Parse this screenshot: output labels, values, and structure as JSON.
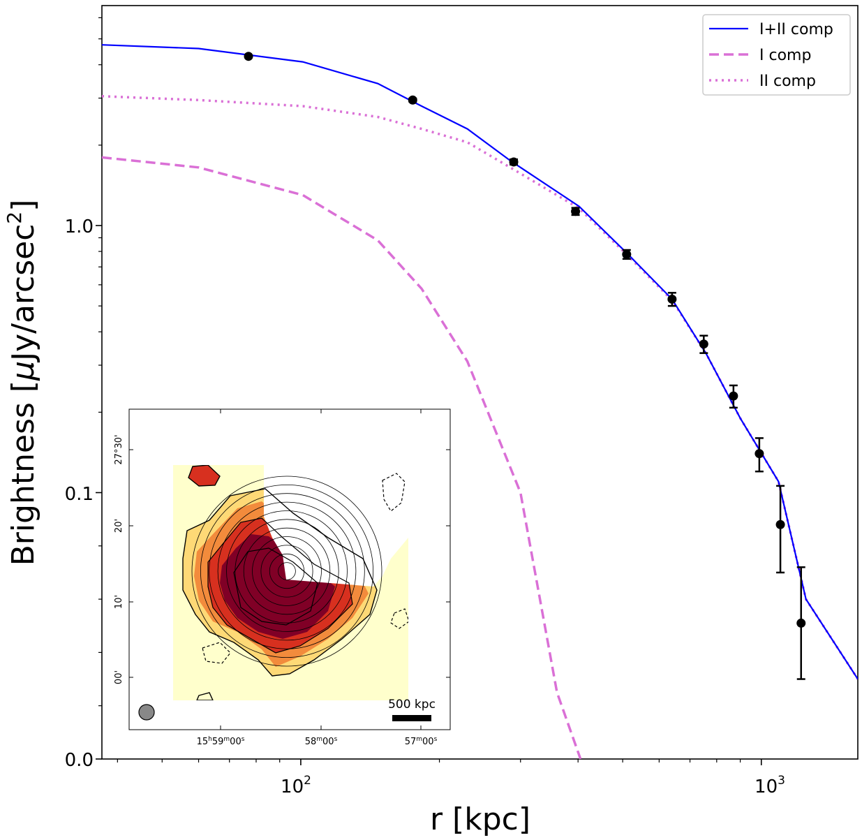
{
  "chart_data": {
    "type": "line",
    "title": "",
    "xlabel": "r [kpc]",
    "ylabel_prefix": "Brightness [",
    "ylabel_mu": "μ",
    "ylabel_unit": "Jy/arcsec",
    "ylabel_power": "2",
    "ylabel_suffix": "]",
    "xscale": "log",
    "xlim": [
      37,
      1620
    ],
    "ylim_display": [
      "0.0",
      "~6"
    ],
    "x_tick_labels": [
      {
        "base": "10",
        "exp": "2",
        "value": 100
      },
      {
        "base": "10",
        "exp": "3",
        "value": 1000
      }
    ],
    "y_tick_labels": [
      "1.0",
      "0.1",
      "0.0"
    ],
    "legend_position": "top-right",
    "series": [
      {
        "name": "I+II comp",
        "style": "solid",
        "color": "#0000ff",
        "x": [
          37,
          60,
          101,
          147,
          183,
          230,
          285,
          402,
          510,
          640,
          760,
          900,
          1090,
          1250,
          1620
        ],
        "y": [
          4.75,
          4.6,
          4.1,
          3.4,
          2.8,
          2.3,
          1.75,
          1.18,
          0.79,
          0.53,
          0.33,
          0.19,
          0.11,
          0.06,
          0.03
        ]
      },
      {
        "name": "I comp",
        "style": "dashed",
        "color": "#da70d6",
        "x": [
          37,
          60,
          101,
          147,
          183,
          230,
          300,
          360,
          405
        ],
        "y": [
          1.8,
          1.65,
          1.3,
          0.88,
          0.58,
          0.31,
          0.1,
          0.025,
          0.0
        ]
      },
      {
        "name": "II comp",
        "style": "dotted",
        "color": "#da70d6",
        "x": [
          37,
          60,
          101,
          147,
          183,
          230,
          285,
          402,
          510,
          640,
          760,
          900,
          1090,
          1250,
          1620
        ],
        "y": [
          3.05,
          2.95,
          2.8,
          2.55,
          2.3,
          2.05,
          1.65,
          1.16,
          0.78,
          0.525,
          0.33,
          0.19,
          0.11,
          0.06,
          0.03
        ]
      }
    ],
    "data_points": {
      "name": "Observed brightness",
      "x": [
        77,
        175,
        290,
        395,
        510,
        640,
        750,
        870,
        990,
        1100,
        1220
      ],
      "y": [
        4.3,
        2.95,
        1.73,
        1.13,
        0.78,
        0.53,
        0.36,
        0.23,
        0.14,
        0.088,
        0.051
      ],
      "yerr": [
        0.04,
        0.04,
        0.04,
        0.035,
        0.03,
        0.03,
        0.027,
        0.022,
        0.02,
        0.018,
        0.021
      ]
    }
  },
  "inset": {
    "ra_labels": [
      {
        "h": "15",
        "hs": "h",
        "m": "59",
        "ms": "m",
        "s": "00",
        "ss": "s"
      },
      {
        "h": "",
        "hs": "",
        "m": "58",
        "ms": "m",
        "s": "00",
        "ss": "s"
      },
      {
        "h": "",
        "hs": "",
        "m": "57",
        "ms": "m",
        "s": "00",
        "ss": "s"
      }
    ],
    "dec_labels": [
      "27°30'",
      "20'",
      "10'",
      "00'"
    ],
    "scale_bar_label": "500 kpc",
    "n_annuli": 11,
    "colors": {
      "background": "#ffffcc",
      "light": "#fed976",
      "orange": "#f28b3c",
      "red": "#d7301f",
      "dark": "#800026",
      "beam": "#888888"
    }
  }
}
